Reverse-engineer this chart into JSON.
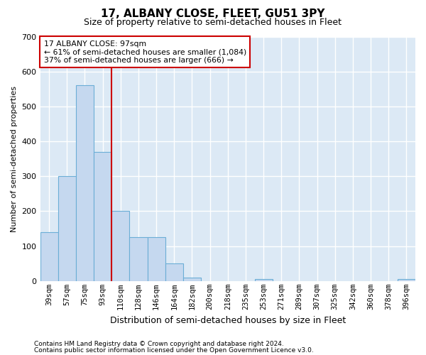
{
  "title": "17, ALBANY CLOSE, FLEET, GU51 3PY",
  "subtitle": "Size of property relative to semi-detached houses in Fleet",
  "xlabel": "Distribution of semi-detached houses by size in Fleet",
  "ylabel": "Number of semi-detached properties",
  "categories": [
    "39sqm",
    "57sqm",
    "75sqm",
    "93sqm",
    "110sqm",
    "128sqm",
    "146sqm",
    "164sqm",
    "182sqm",
    "200sqm",
    "218sqm",
    "235sqm",
    "253sqm",
    "271sqm",
    "289sqm",
    "307sqm",
    "325sqm",
    "342sqm",
    "360sqm",
    "378sqm",
    "396sqm"
  ],
  "values": [
    140,
    300,
    560,
    370,
    200,
    125,
    125,
    50,
    10,
    0,
    0,
    0,
    5,
    0,
    0,
    0,
    0,
    0,
    0,
    0,
    5
  ],
  "bar_color": "#c5d8ef",
  "bar_edge_color": "#6baed6",
  "vline_position": 3.5,
  "annotation_line1": "17 ALBANY CLOSE: 97sqm",
  "annotation_line2": "← 61% of semi-detached houses are smaller (1,084)",
  "annotation_line3": "37% of semi-detached houses are larger (666) →",
  "annotation_box_color": "#ffffff",
  "annotation_box_edge": "#cc0000",
  "vline_color": "#cc0000",
  "ylim": [
    0,
    700
  ],
  "yticks": [
    0,
    100,
    200,
    300,
    400,
    500,
    600,
    700
  ],
  "background_color": "#dce9f5",
  "grid_color": "#ffffff",
  "title_fontsize": 11,
  "subtitle_fontsize": 9,
  "ylabel_fontsize": 8,
  "xlabel_fontsize": 9,
  "footnote1": "Contains HM Land Registry data © Crown copyright and database right 2024.",
  "footnote2": "Contains public sector information licensed under the Open Government Licence v3.0."
}
